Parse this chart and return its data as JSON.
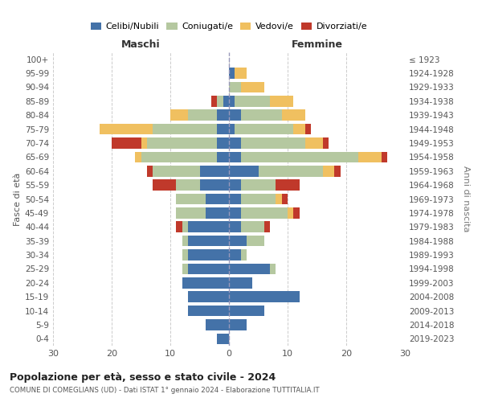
{
  "age_groups": [
    "0-4",
    "5-9",
    "10-14",
    "15-19",
    "20-24",
    "25-29",
    "30-34",
    "35-39",
    "40-44",
    "45-49",
    "50-54",
    "55-59",
    "60-64",
    "65-69",
    "70-74",
    "75-79",
    "80-84",
    "85-89",
    "90-94",
    "95-99",
    "100+"
  ],
  "birth_years": [
    "2019-2023",
    "2014-2018",
    "2009-2013",
    "2004-2008",
    "1999-2003",
    "1994-1998",
    "1989-1993",
    "1984-1988",
    "1979-1983",
    "1974-1978",
    "1969-1973",
    "1964-1968",
    "1959-1963",
    "1954-1958",
    "1949-1953",
    "1944-1948",
    "1939-1943",
    "1934-1938",
    "1929-1933",
    "1924-1928",
    "≤ 1923"
  ],
  "colors": {
    "celibi": "#4472a8",
    "coniugati": "#b5c8a0",
    "vedovi": "#f0c060",
    "divorziati": "#c0392b"
  },
  "maschi": {
    "celibi": [
      2,
      4,
      7,
      7,
      8,
      7,
      7,
      7,
      7,
      4,
      4,
      5,
      5,
      2,
      2,
      2,
      2,
      1,
      0,
      0,
      0
    ],
    "coniugati": [
      0,
      0,
      0,
      0,
      0,
      1,
      1,
      1,
      1,
      5,
      5,
      4,
      8,
      13,
      12,
      11,
      5,
      1,
      0,
      0,
      0
    ],
    "vedovi": [
      0,
      0,
      0,
      0,
      0,
      0,
      0,
      0,
      0,
      0,
      0,
      0,
      0,
      1,
      1,
      9,
      3,
      0,
      0,
      0,
      0
    ],
    "divorziati": [
      0,
      0,
      0,
      0,
      0,
      0,
      0,
      0,
      1,
      0,
      0,
      4,
      1,
      0,
      5,
      0,
      0,
      1,
      0,
      0,
      0
    ]
  },
  "femmine": {
    "celibi": [
      0,
      3,
      6,
      12,
      4,
      7,
      2,
      3,
      2,
      2,
      2,
      2,
      5,
      2,
      2,
      1,
      2,
      1,
      0,
      1,
      0
    ],
    "coniugati": [
      0,
      0,
      0,
      0,
      0,
      1,
      1,
      3,
      4,
      8,
      6,
      6,
      11,
      20,
      11,
      10,
      7,
      6,
      2,
      0,
      0
    ],
    "vedovi": [
      0,
      0,
      0,
      0,
      0,
      0,
      0,
      0,
      0,
      1,
      1,
      0,
      2,
      4,
      3,
      2,
      4,
      4,
      4,
      2,
      0
    ],
    "divorziati": [
      0,
      0,
      0,
      0,
      0,
      0,
      0,
      0,
      1,
      1,
      1,
      4,
      1,
      1,
      1,
      1,
      0,
      0,
      0,
      0,
      0
    ]
  },
  "title": "Popolazione per età, sesso e stato civile - 2024",
  "subtitle": "COMUNE DI COMEGLIANS (UD) - Dati ISTAT 1° gennaio 2024 - Elaborazione TUTTITALIA.IT",
  "xlabel_left": "Maschi",
  "xlabel_right": "Femmine",
  "ylabel_left": "Fasce di età",
  "ylabel_right": "Anni di nascita",
  "xlim": 30,
  "legend_labels": [
    "Celibi/Nubili",
    "Coniugati/e",
    "Vedovi/e",
    "Divorziati/e"
  ],
  "bg_color": "#ffffff",
  "grid_color": "#cccccc"
}
